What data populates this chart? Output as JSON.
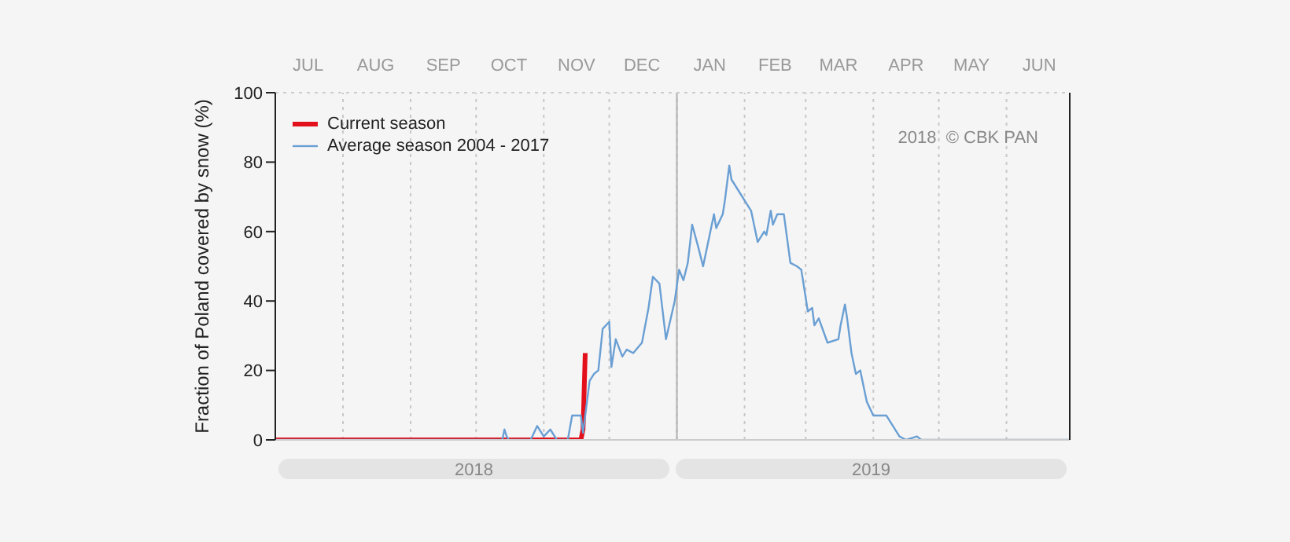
{
  "chart_data": {
    "type": "line",
    "ylabel": "Fraction of  Poland  covered by snow (%)",
    "xlim": [
      "2018-07-01",
      "2019-06-30"
    ],
    "xticks": [
      {
        "value": "2018-09-30",
        "label": "2018"
      },
      {
        "value": "2019-03-31",
        "label": "2019"
      }
    ],
    "x2lim": [
      "2018-07-01",
      "2019-06-30"
    ],
    "x2ticks": [
      {
        "value": "2018-07-01",
        "label": null
      },
      {
        "value": "2018-07-16",
        "label": "JUL"
      },
      {
        "value": "2018-08-01",
        "label": null
      },
      {
        "value": "2018-08-16",
        "label": "AUG"
      },
      {
        "value": "2018-09-01",
        "label": null
      },
      {
        "value": "2018-09-16",
        "label": "SEP"
      },
      {
        "value": "2018-10-01",
        "label": null
      },
      {
        "value": "2018-10-16",
        "label": "OCT"
      },
      {
        "value": "2018-11-01",
        "label": null
      },
      {
        "value": "2018-11-16",
        "label": "NOV"
      },
      {
        "value": "2018-12-01",
        "label": null
      },
      {
        "value": "2018-12-16",
        "label": "DEC"
      },
      {
        "value": "2019-01-01",
        "label": null
      },
      {
        "value": "2019-01-16",
        "label": "JAN"
      },
      {
        "value": "2019-02-01",
        "label": null
      },
      {
        "value": "2019-02-15",
        "label": "FEB"
      },
      {
        "value": "2019-03-01",
        "label": null
      },
      {
        "value": "2019-03-16",
        "label": "MAR"
      },
      {
        "value": "2019-04-01",
        "label": null
      },
      {
        "value": "2019-04-16",
        "label": "APR"
      },
      {
        "value": "2019-05-01",
        "label": null
      },
      {
        "value": "2019-05-16",
        "label": "MAY"
      },
      {
        "value": "2019-06-01",
        "label": null
      },
      {
        "value": "2019-06-16",
        "label": "JUN"
      },
      {
        "value": "2019-06-30",
        "label": null
      }
    ],
    "ylim": [
      0,
      100
    ],
    "yticks": [
      0,
      20,
      40,
      60,
      80,
      100
    ],
    "grid": "x",
    "legend": "top left",
    "ref_lines": [
      {
        "axis": "x",
        "value": "2019-01-01",
        "color": "#b0b0b0"
      }
    ],
    "annotations": [
      "2018  © CBK PAN"
    ],
    "series": [
      {
        "name": "Current season",
        "color": "#e3101b",
        "x": [
          "2018-07-01",
          "2018-11-18",
          "2018-11-19",
          "2018-11-20"
        ],
        "values": [
          0,
          0,
          3,
          25
        ]
      },
      {
        "name": "Average season 2004 - 2017",
        "color": "#6a9fd4",
        "x": [
          "2018-07-01",
          "2018-10-13",
          "2018-10-14",
          "2018-10-15",
          "2018-10-16",
          "2018-10-26",
          "2018-10-29",
          "2018-11-01",
          "2018-11-04",
          "2018-11-07",
          "2018-11-12",
          "2018-11-14",
          "2018-11-18",
          "2018-11-19",
          "2018-11-22",
          "2018-11-24",
          "2018-11-26",
          "2018-11-28",
          "2018-12-01",
          "2018-12-02",
          "2018-12-04",
          "2018-12-07",
          "2018-12-09",
          "2018-12-12",
          "2018-12-16",
          "2018-12-19",
          "2018-12-21",
          "2018-12-24",
          "2018-12-27",
          "2018-12-31",
          "2019-01-02",
          "2019-01-04",
          "2019-01-06",
          "2019-01-08",
          "2019-01-11",
          "2019-01-13",
          "2019-01-16",
          "2019-01-18",
          "2019-01-19",
          "2019-01-22",
          "2019-01-23",
          "2019-01-25",
          "2019-01-26",
          "2019-01-29",
          "2019-02-01",
          "2019-02-04",
          "2019-02-07",
          "2019-02-10",
          "2019-02-11",
          "2019-02-13",
          "2019-02-14",
          "2019-02-16",
          "2019-02-19",
          "2019-02-22",
          "2019-02-25",
          "2019-02-27",
          "2019-03-02",
          "2019-03-04",
          "2019-03-05",
          "2019-03-07",
          "2019-03-11",
          "2019-03-16",
          "2019-03-17",
          "2019-03-19",
          "2019-03-20",
          "2019-03-22",
          "2019-03-24",
          "2019-03-26",
          "2019-03-29",
          "2019-04-01",
          "2019-04-07",
          "2019-04-10",
          "2019-04-13",
          "2019-04-16",
          "2019-04-21",
          "2019-04-23",
          "2019-06-30"
        ],
        "values": [
          0,
          0,
          3,
          1,
          0,
          0,
          4,
          1,
          3,
          0,
          0,
          7,
          7,
          2,
          17,
          19,
          20,
          32,
          34,
          21,
          29,
          24,
          26,
          25,
          28,
          38,
          47,
          45,
          29,
          40,
          49,
          46,
          51,
          62,
          55,
          50,
          59,
          65,
          61,
          65,
          69,
          79,
          75,
          72,
          69,
          66,
          57,
          60,
          59,
          66,
          62,
          65,
          65,
          51,
          50,
          49,
          37,
          38,
          33,
          35,
          28,
          29,
          33,
          39,
          35,
          25,
          19,
          20,
          11,
          7,
          7,
          4,
          1,
          0,
          1,
          0,
          0
        ]
      }
    ]
  }
}
